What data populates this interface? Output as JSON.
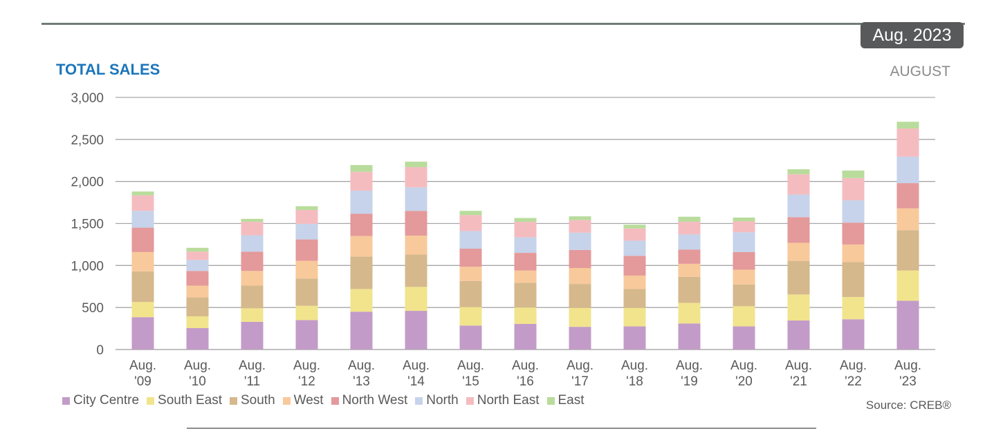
{
  "header": {
    "date_badge": "Aug. 2023",
    "title": "TOTAL SALES",
    "period": "AUGUST"
  },
  "footer": {
    "source": "Source: CREB®"
  },
  "chart_data": {
    "type": "bar",
    "stacked": true,
    "title": "TOTAL SALES",
    "xlabel": "",
    "ylabel": "",
    "ylim": [
      0,
      3000
    ],
    "yticks": [
      0,
      500,
      1000,
      1500,
      2000,
      2500,
      3000
    ],
    "ytick_labels": [
      "0",
      "500",
      "1,000",
      "1,500",
      "2,000",
      "2,500",
      "3,000"
    ],
    "grid": true,
    "legend_position": "bottom-left",
    "categories": [
      [
        "Aug.",
        "'09"
      ],
      [
        "Aug.",
        "'10"
      ],
      [
        "Aug.",
        "'11"
      ],
      [
        "Aug.",
        "'12"
      ],
      [
        "Aug.",
        "'13"
      ],
      [
        "Aug.",
        "'14"
      ],
      [
        "Aug.",
        "'15"
      ],
      [
        "Aug.",
        "'16"
      ],
      [
        "Aug.",
        "'17"
      ],
      [
        "Aug.",
        "'18"
      ],
      [
        "Aug.",
        "'19"
      ],
      [
        "Aug.",
        "'20"
      ],
      [
        "Aug.",
        "'21"
      ],
      [
        "Aug.",
        "'22"
      ],
      [
        "Aug.",
        "'23"
      ]
    ],
    "series": [
      {
        "name": "City Centre",
        "color": "#c39bc8",
        "values": [
          385,
          255,
          330,
          350,
          450,
          460,
          285,
          305,
          270,
          275,
          310,
          275,
          345,
          360,
          580
        ]
      },
      {
        "name": "South East",
        "color": "#f1e48c",
        "values": [
          180,
          140,
          160,
          170,
          270,
          285,
          220,
          195,
          225,
          220,
          245,
          240,
          310,
          265,
          360
        ]
      },
      {
        "name": "South",
        "color": "#d6b88d",
        "values": [
          365,
          225,
          270,
          325,
          385,
          385,
          310,
          295,
          285,
          225,
          310,
          260,
          400,
          415,
          480
        ]
      },
      {
        "name": "West",
        "color": "#f8c99a",
        "values": [
          230,
          140,
          175,
          210,
          245,
          225,
          170,
          145,
          190,
          160,
          155,
          175,
          215,
          210,
          260
        ]
      },
      {
        "name": "North West",
        "color": "#e4999b",
        "values": [
          290,
          175,
          230,
          255,
          265,
          295,
          215,
          210,
          215,
          235,
          170,
          210,
          305,
          260,
          300
        ]
      },
      {
        "name": "North",
        "color": "#c6d3ea",
        "values": [
          200,
          130,
          195,
          185,
          275,
          280,
          210,
          185,
          205,
          180,
          180,
          235,
          270,
          265,
          315
        ]
      },
      {
        "name": "North East",
        "color": "#f5bcc0",
        "values": [
          185,
          100,
          160,
          165,
          225,
          240,
          190,
          185,
          150,
          145,
          150,
          130,
          240,
          265,
          335
        ]
      },
      {
        "name": "East",
        "color": "#b9dc9c",
        "values": [
          45,
          45,
          35,
          45,
          80,
          65,
          50,
          45,
          45,
          45,
          60,
          45,
          60,
          90,
          80
        ]
      }
    ]
  }
}
